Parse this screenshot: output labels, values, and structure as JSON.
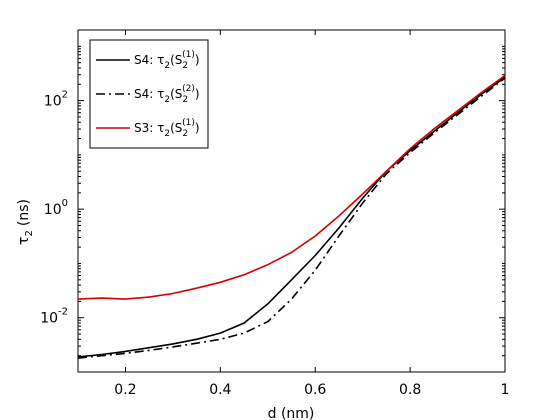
{
  "chart_data": {
    "type": "line",
    "title": "",
    "xlabel": "d (nm)",
    "ylabel_symbol": "τ",
    "ylabel_sub": "2",
    "ylabel_unit": "(ns)",
    "xlim": [
      0.1,
      1.0
    ],
    "ylim": [
      0.001,
      2000
    ],
    "yscale": "log",
    "grid": false,
    "legend_position": "top-left",
    "x_ticks": [
      {
        "value": 0.2,
        "label": "0.2"
      },
      {
        "value": 0.4,
        "label": "0.4"
      },
      {
        "value": 0.6,
        "label": "0.6"
      },
      {
        "value": 0.8,
        "label": "0.8"
      },
      {
        "value": 1.0,
        "label": "1"
      }
    ],
    "y_ticks": [
      {
        "value": 0.01,
        "base": "10",
        "exp": "-2"
      },
      {
        "value": 1,
        "base": "10",
        "exp": "0"
      },
      {
        "value": 100,
        "base": "10",
        "exp": "2"
      }
    ],
    "series": [
      {
        "legend_prefix": "S4: τ",
        "legend_sub": "2",
        "legend_mid": "(S",
        "legend_state_sub": "2",
        "legend_state_sup": "(1)",
        "legend_suffix": ")",
        "color": "#000000",
        "dash": "solid",
        "x": [
          0.1,
          0.15,
          0.2,
          0.25,
          0.3,
          0.35,
          0.4,
          0.45,
          0.5,
          0.55,
          0.6,
          0.65,
          0.7,
          0.75,
          0.8,
          0.85,
          0.9,
          0.95,
          1.0
        ],
        "y": [
          0.0019,
          0.0021,
          0.0024,
          0.0028,
          0.0033,
          0.004,
          0.0052,
          0.008,
          0.018,
          0.05,
          0.14,
          0.45,
          1.6,
          5.0,
          12,
          27,
          60,
          130,
          270
        ]
      },
      {
        "legend_prefix": "S4: τ",
        "legend_sub": "2",
        "legend_mid": "(S",
        "legend_state_sub": "2",
        "legend_state_sup": "(2)",
        "legend_suffix": ")",
        "color": "#000000",
        "dash": "dashdot",
        "x": [
          0.1,
          0.15,
          0.2,
          0.25,
          0.3,
          0.35,
          0.4,
          0.45,
          0.5,
          0.55,
          0.6,
          0.65,
          0.7,
          0.75,
          0.8,
          0.85,
          0.9,
          0.95,
          1.0
        ],
        "y": [
          0.0018,
          0.002,
          0.0022,
          0.0025,
          0.0029,
          0.0034,
          0.004,
          0.0052,
          0.0085,
          0.022,
          0.075,
          0.32,
          1.3,
          4.5,
          11,
          25,
          55,
          120,
          260
        ]
      },
      {
        "legend_prefix": "S3: τ",
        "legend_sub": "2",
        "legend_mid": "(S",
        "legend_state_sub": "2",
        "legend_state_sup": "(1)",
        "legend_suffix": ")",
        "color": "#d40000",
        "dash": "solid",
        "x": [
          0.1,
          0.15,
          0.2,
          0.25,
          0.3,
          0.35,
          0.4,
          0.45,
          0.5,
          0.55,
          0.6,
          0.65,
          0.7,
          0.75,
          0.8,
          0.85,
          0.9,
          0.95,
          1.0
        ],
        "y": [
          0.022,
          0.023,
          0.022,
          0.024,
          0.028,
          0.035,
          0.045,
          0.062,
          0.095,
          0.16,
          0.32,
          0.75,
          1.9,
          5.0,
          13,
          30,
          65,
          140,
          290
        ]
      }
    ]
  }
}
